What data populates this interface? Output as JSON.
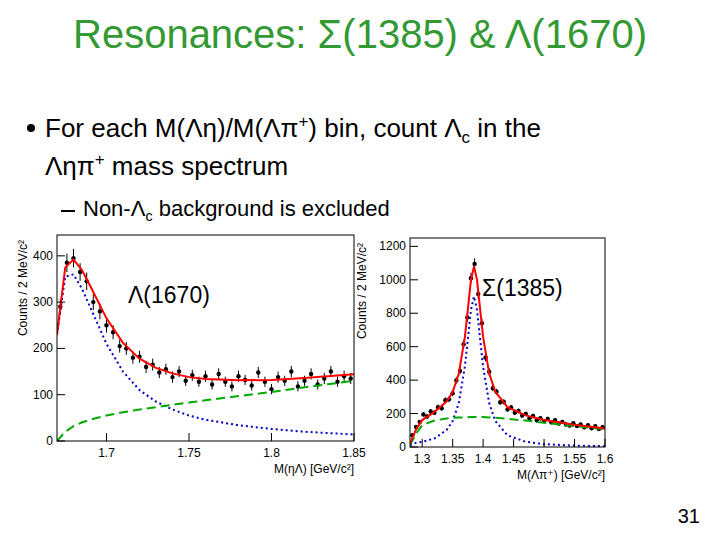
{
  "slide": {
    "title": "Resonances: Σ(1385) & Λ(1670)",
    "bullets": [
      {
        "level": 1,
        "lines": [
          [
            "For each M(Λη)/M(Λπ",
            {
              "sup": "+"
            },
            ") bin, count Λ",
            {
              "sub": "c"
            },
            " in the"
          ],
          [
            "Ληπ",
            {
              "sup": "+"
            },
            " mass spectrum"
          ]
        ]
      },
      {
        "level": 2,
        "lines": [
          [
            "Non-Λ",
            {
              "sub": "c"
            },
            " background is excluded"
          ]
        ]
      }
    ],
    "page": "31"
  },
  "chart_data": [
    {
      "type": "scatter",
      "annotation": "Λ(1670)",
      "x_label": "M(ηΛ) [GeV/c²]",
      "y_label": "Counts / 2 MeV/c²",
      "xlim": [
        1.67,
        1.85
      ],
      "xticks": [
        1.7,
        1.75,
        1.8,
        1.85
      ],
      "ylim": [
        0,
        445
      ],
      "yticks": [
        0,
        100,
        200,
        300,
        400
      ],
      "grid": false,
      "series": [
        {
          "type": "scatter",
          "color": "#000000",
          "marker": "circle",
          "x": [
            1.672,
            1.676,
            1.68,
            1.684,
            1.688,
            1.692,
            1.696,
            1.7,
            1.704,
            1.708,
            1.712,
            1.716,
            1.72,
            1.724,
            1.728,
            1.732,
            1.736,
            1.74,
            1.744,
            1.748,
            1.752,
            1.756,
            1.76,
            1.764,
            1.768,
            1.772,
            1.776,
            1.78,
            1.784,
            1.788,
            1.792,
            1.796,
            1.8,
            1.804,
            1.808,
            1.812,
            1.816,
            1.82,
            1.824,
            1.828,
            1.832,
            1.836,
            1.84,
            1.844,
            1.848
          ],
          "values": [
            290,
            385,
            395,
            365,
            345,
            300,
            280,
            250,
            235,
            205,
            200,
            180,
            182,
            160,
            165,
            148,
            155,
            138,
            150,
            130,
            142,
            128,
            140,
            122,
            145,
            128,
            118,
            140,
            132,
            120,
            148,
            128,
            112,
            138,
            130,
            150,
            118,
            130,
            145,
            122,
            135,
            150,
            128,
            140,
            135
          ],
          "errors": [
            17,
            20,
            20,
            19,
            19,
            17,
            17,
            16,
            15,
            14,
            14,
            13,
            13,
            13,
            13,
            12,
            12,
            12,
            12,
            11,
            12,
            11,
            12,
            11,
            12,
            11,
            11,
            12,
            11,
            11,
            12,
            11,
            11,
            12,
            11,
            12,
            11,
            11,
            12,
            11,
            12,
            12,
            11,
            12,
            12
          ]
        },
        {
          "type": "line",
          "color": "#0000cc",
          "line_style": "dotted",
          "x": [
            1.67,
            1.675,
            1.68,
            1.685,
            1.69,
            1.7,
            1.71,
            1.72,
            1.73,
            1.74,
            1.75,
            1.76,
            1.78,
            1.8,
            1.82,
            1.85
          ],
          "values": [
            230,
            355,
            360,
            330,
            290,
            210,
            150,
            110,
            85,
            68,
            55,
            46,
            34,
            26,
            20,
            14
          ]
        },
        {
          "type": "line",
          "color": "#00aa00",
          "line_style": "dashed",
          "x": [
            1.67,
            1.675,
            1.68,
            1.685,
            1.69,
            1.7,
            1.71,
            1.72,
            1.73,
            1.74,
            1.75,
            1.76,
            1.78,
            1.8,
            1.82,
            1.85
          ],
          "values": [
            0,
            20,
            32,
            40,
            46,
            55,
            62,
            68,
            73,
            78,
            83,
            88,
            97,
            106,
            116,
            130
          ]
        },
        {
          "type": "line",
          "color": "#ff0000",
          "line_style": "solid",
          "x": [
            1.67,
            1.675,
            1.68,
            1.685,
            1.69,
            1.7,
            1.71,
            1.72,
            1.73,
            1.74,
            1.75,
            1.76,
            1.78,
            1.8,
            1.82,
            1.85
          ],
          "values": [
            230,
            375,
            392,
            370,
            336,
            265,
            212,
            178,
            158,
            146,
            138,
            134,
            131,
            132,
            136,
            144
          ]
        }
      ]
    },
    {
      "type": "scatter",
      "annotation": "Σ(1385)",
      "x_label": "M(Λπ⁺) [GeV/c²]",
      "y_label": "Counts / 2 MeV/c²",
      "xlim": [
        1.28,
        1.6
      ],
      "xticks": [
        1.3,
        1.35,
        1.4,
        1.45,
        1.5,
        1.55,
        1.6
      ],
      "ylim": [
        0,
        1250
      ],
      "yticks": [
        0,
        200,
        400,
        600,
        800,
        1000,
        1200
      ],
      "grid": false,
      "series": [
        {
          "type": "scatter",
          "color": "#000000",
          "marker": "circle",
          "x": [
            1.284,
            1.29,
            1.296,
            1.302,
            1.308,
            1.314,
            1.32,
            1.326,
            1.332,
            1.338,
            1.344,
            1.35,
            1.356,
            1.362,
            1.368,
            1.374,
            1.38,
            1.386,
            1.392,
            1.398,
            1.404,
            1.41,
            1.416,
            1.422,
            1.428,
            1.434,
            1.44,
            1.446,
            1.452,
            1.458,
            1.464,
            1.47,
            1.476,
            1.482,
            1.488,
            1.494,
            1.5,
            1.506,
            1.512,
            1.518,
            1.524,
            1.53,
            1.536,
            1.542,
            1.548,
            1.554,
            1.56,
            1.566,
            1.572,
            1.578,
            1.584,
            1.59,
            1.596
          ],
          "values": [
            70,
            120,
            150,
            195,
            182,
            212,
            205,
            238,
            232,
            280,
            285,
            322,
            398,
            455,
            615,
            775,
            1010,
            1095,
            915,
            740,
            535,
            450,
            352,
            330,
            268,
            270,
            225,
            236,
            205,
            215,
            188,
            198,
            172,
            185,
            160,
            172,
            155,
            168,
            148,
            160,
            140,
            150,
            135,
            128,
            142,
            125,
            135,
            118,
            130,
            112,
            125,
            108,
            118
          ],
          "errors": [
            8,
            11,
            12,
            14,
            13,
            15,
            14,
            15,
            15,
            17,
            17,
            18,
            20,
            21,
            25,
            28,
            32,
            33,
            30,
            27,
            23,
            21,
            19,
            18,
            16,
            16,
            15,
            15,
            14,
            15,
            14,
            14,
            13,
            14,
            13,
            13,
            12,
            13,
            12,
            13,
            12,
            12,
            12,
            11,
            12,
            11,
            12,
            11,
            11,
            11,
            11,
            10,
            11
          ]
        },
        {
          "type": "line",
          "color": "#0000cc",
          "line_style": "dotted",
          "x": [
            1.28,
            1.29,
            1.3,
            1.32,
            1.34,
            1.35,
            1.36,
            1.37,
            1.375,
            1.38,
            1.385,
            1.39,
            1.395,
            1.4,
            1.41,
            1.42,
            1.44,
            1.47,
            1.5,
            1.55,
            1.6
          ],
          "values": [
            10,
            25,
            31,
            51,
            101,
            155,
            262,
            479,
            647,
            820,
            900,
            820,
            647,
            479,
            262,
            155,
            70,
            31,
            17,
            8,
            5
          ]
        },
        {
          "type": "line",
          "color": "#00aa00",
          "line_style": "dashed",
          "x": [
            1.28,
            1.29,
            1.3,
            1.32,
            1.34,
            1.35,
            1.36,
            1.37,
            1.375,
            1.38,
            1.385,
            1.39,
            1.395,
            1.4,
            1.41,
            1.42,
            1.44,
            1.47,
            1.5,
            1.55,
            1.6
          ],
          "values": [
            10,
            80,
            130,
            158,
            171,
            174,
            176,
            177,
            178,
            179,
            180,
            180,
            179,
            179,
            177,
            175,
            168,
            158,
            145,
            125,
            105
          ]
        },
        {
          "type": "line",
          "color": "#ff0000",
          "line_style": "solid",
          "x": [
            1.28,
            1.29,
            1.3,
            1.32,
            1.34,
            1.35,
            1.36,
            1.37,
            1.375,
            1.38,
            1.385,
            1.39,
            1.395,
            1.4,
            1.41,
            1.42,
            1.44,
            1.47,
            1.5,
            1.55,
            1.6
          ],
          "values": [
            20,
            105,
            161,
            209,
            272,
            329,
            438,
            656,
            825,
            999,
            1080,
            1000,
            826,
            658,
            439,
            330,
            238,
            189,
            162,
            133,
            110
          ]
        }
      ]
    }
  ]
}
